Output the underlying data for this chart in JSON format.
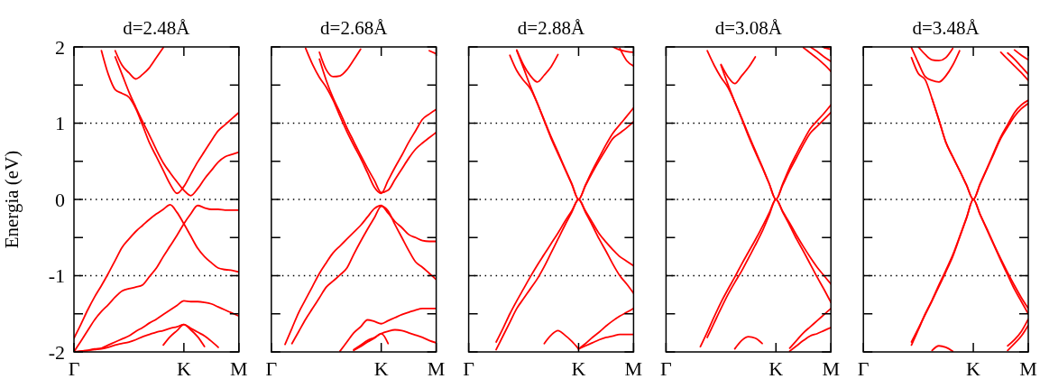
{
  "chart_data": [
    {
      "type": "line",
      "title": "d=2.48Å",
      "ylabel": "Energia (eV)",
      "categories": [
        "Γ",
        null,
        null,
        null,
        null,
        null,
        null,
        null,
        null,
        null,
        null,
        null,
        null,
        null,
        null,
        null,
        "K",
        null,
        null,
        null,
        null,
        null,
        null,
        null,
        "M"
      ],
      "ylim": [
        -2,
        2
      ],
      "yticks": [
        -2,
        {
          "value": -1.5,
          "label": null
        },
        -1,
        {
          "value": -0.5,
          "label": null
        },
        0,
        {
          "value": 0.5,
          "label": null
        },
        1,
        {
          "value": 1.5,
          "label": null
        },
        2
      ],
      "ref_lines": [
        {
          "axis": "y",
          "value": 1,
          "color": "#000000",
          "line_style": "dotted"
        },
        {
          "axis": "y",
          "value": 0,
          "color": "#000000",
          "line_style": "dotted"
        },
        {
          "axis": "y",
          "value": -1,
          "color": "#000000",
          "line_style": "dotted"
        }
      ],
      "series": [
        {
          "color": "#ff0000",
          "values": [
            null,
            null,
            null,
            null,
            null,
            null,
            1.95,
            1.76,
            1.66,
            1.58,
            1.64,
            1.73,
            1.86,
            1.99,
            null,
            null,
            null,
            null,
            null,
            null,
            null,
            null,
            null,
            null,
            null
          ]
        },
        {
          "color": "#ff0000",
          "values": [
            null,
            null,
            null,
            null,
            1.95,
            1.64,
            1.44,
            1.39,
            1.34,
            1.19,
            0.97,
            0.74,
            0.56,
            0.38,
            0.2,
            0.08,
            0.17,
            0.33,
            0.49,
            0.63,
            0.77,
            0.9,
            0.98,
            1.06,
            1.14
          ]
        },
        {
          "color": "#ff0000",
          "values": [
            null,
            null,
            null,
            null,
            null,
            null,
            1.87,
            1.64,
            1.41,
            1.21,
            1.02,
            0.84,
            0.65,
            0.48,
            0.35,
            0.23,
            0.12,
            0.05,
            0.14,
            0.27,
            0.38,
            0.49,
            0.56,
            0.59,
            0.62
          ]
        },
        {
          "color": "#ff0000",
          "values": [
            -1.82,
            -1.64,
            -1.45,
            -1.28,
            -1.13,
            -0.97,
            -0.8,
            -0.63,
            -0.52,
            -0.42,
            -0.34,
            -0.26,
            -0.19,
            -0.13,
            -0.07,
            -0.17,
            -0.32,
            -0.48,
            -0.64,
            -0.75,
            -0.83,
            -0.9,
            -0.92,
            -0.93,
            -0.95
          ]
        },
        {
          "color": "#ff0000",
          "values": [
            -2,
            -1.86,
            -1.72,
            -1.58,
            -1.47,
            -1.38,
            -1.28,
            -1.2,
            -1.17,
            -1.15,
            -1.12,
            -1.01,
            -0.9,
            -0.75,
            -0.61,
            -0.47,
            -0.32,
            -0.19,
            -0.08,
            -0.11,
            -0.13,
            -0.13,
            -0.14,
            -0.14,
            -0.14
          ]
        },
        {
          "color": "#ff0000",
          "values": [
            -2,
            -1.99,
            -1.98,
            -1.96,
            -1.95,
            -1.91,
            -1.87,
            -1.83,
            -1.79,
            -1.73,
            -1.68,
            -1.62,
            -1.57,
            -1.51,
            -1.45,
            -1.39,
            -1.33,
            -1.34,
            -1.34,
            -1.35,
            -1.37,
            -1.41,
            -1.45,
            -1.49,
            -1.53
          ]
        },
        {
          "color": "#ff0000",
          "values": [
            -2,
            -1.99,
            -1.98,
            -1.97,
            -1.96,
            -1.94,
            -1.91,
            -1.89,
            -1.87,
            -1.84,
            -1.8,
            -1.77,
            -1.74,
            -1.72,
            -1.69,
            -1.67,
            -1.64,
            -1.69,
            -1.74,
            -1.79,
            -1.86,
            -1.94,
            null,
            null,
            null
          ]
        },
        {
          "color": "#ff0000",
          "values": [
            null,
            null,
            null,
            null,
            null,
            null,
            null,
            null,
            null,
            null,
            null,
            null,
            null,
            -1.91,
            -1.8,
            -1.72,
            -1.64,
            -1.71,
            -1.8,
            -1.93,
            null,
            null,
            null,
            null,
            null
          ]
        }
      ]
    },
    {
      "type": "line",
      "title": "d=2.68Å",
      "tick_labels": "x",
      "categories": [
        "Γ",
        null,
        null,
        null,
        null,
        null,
        null,
        null,
        null,
        null,
        null,
        null,
        null,
        null,
        null,
        null,
        "K",
        null,
        null,
        null,
        null,
        null,
        null,
        null,
        "M"
      ],
      "ylim": [
        -2,
        2
      ],
      "yticks": [
        -2,
        {
          "value": -1.5,
          "label": null
        },
        -1,
        {
          "value": -0.5,
          "label": null
        },
        0,
        {
          "value": 0.5,
          "label": null
        },
        1,
        {
          "value": 1.5,
          "label": null
        },
        2
      ],
      "ref_lines": [
        {
          "axis": "y",
          "value": 1,
          "color": "#000000",
          "line_style": "dotted"
        },
        {
          "axis": "y",
          "value": 0,
          "color": "#000000",
          "line_style": "dotted"
        },
        {
          "axis": "y",
          "value": -1,
          "color": "#000000",
          "line_style": "dotted"
        }
      ],
      "series": [
        {
          "color": "#ff0000",
          "values": [
            null,
            null,
            null,
            null,
            null,
            null,
            null,
            1.93,
            1.7,
            1.61,
            1.62,
            1.7,
            1.83,
            1.97,
            null,
            null,
            null,
            null,
            null,
            null,
            null,
            null,
            null,
            null,
            null
          ]
        },
        {
          "color": "#ff0000",
          "values": [
            null,
            null,
            null,
            null,
            null,
            1.98,
            1.77,
            1.6,
            1.47,
            1.3,
            1.09,
            0.89,
            0.71,
            0.54,
            0.35,
            0.16,
            0.08,
            0.25,
            0.42,
            0.58,
            0.75,
            0.9,
            1.05,
            1.12,
            1.18
          ]
        },
        {
          "color": "#ff0000",
          "values": [
            null,
            null,
            null,
            null,
            null,
            null,
            null,
            1.84,
            1.56,
            1.33,
            1.14,
            0.94,
            0.76,
            0.58,
            0.41,
            0.25,
            0.09,
            0.12,
            0.26,
            0.4,
            0.54,
            0.66,
            0.74,
            0.81,
            0.88
          ]
        },
        {
          "color": "#ff0000",
          "values": [
            null,
            null,
            -1.9,
            -1.69,
            -1.48,
            -1.31,
            -1.14,
            -0.97,
            -0.83,
            -0.7,
            -0.61,
            -0.52,
            -0.43,
            -0.34,
            -0.23,
            -0.12,
            -0.08,
            -0.18,
            -0.29,
            -0.37,
            -0.46,
            -0.5,
            -0.54,
            -0.55,
            -0.55
          ]
        },
        {
          "color": "#ff0000",
          "values": [
            null,
            null,
            null,
            -1.89,
            -1.73,
            -1.57,
            -1.43,
            -1.29,
            -1.15,
            -1.07,
            -0.99,
            -0.9,
            -0.72,
            -0.55,
            -0.39,
            -0.24,
            -0.09,
            -0.15,
            -0.33,
            -0.5,
            -0.67,
            -0.82,
            -0.89,
            -0.97,
            -1.05
          ]
        },
        {
          "color": "#ff0000",
          "values": [
            null,
            null,
            null,
            null,
            null,
            null,
            null,
            null,
            null,
            null,
            -1.99,
            -1.87,
            -1.75,
            -1.67,
            -1.58,
            -1.6,
            -1.63,
            -1.59,
            -1.55,
            -1.51,
            -1.48,
            -1.45,
            -1.43,
            -1.43,
            -1.43
          ]
        },
        {
          "color": "#ff0000",
          "values": [
            null,
            null,
            null,
            null,
            null,
            null,
            null,
            null,
            null,
            null,
            null,
            null,
            -1.97,
            -1.91,
            -1.85,
            -1.81,
            -1.76,
            -1.73,
            -1.71,
            -1.72,
            -1.75,
            -1.78,
            -1.81,
            -1.85,
            -1.88
          ]
        },
        {
          "color": "#ff0000",
          "values": [
            null,
            null,
            null,
            null,
            null,
            null,
            null,
            null,
            null,
            null,
            null,
            null,
            -1.98,
            -1.93,
            -1.87,
            -1.82,
            -1.76,
            -1.89,
            null,
            null,
            null,
            null,
            null,
            null,
            null
          ]
        },
        {
          "color": "#ff0000",
          "values": [
            null,
            null,
            null,
            null,
            null,
            null,
            null,
            null,
            null,
            null,
            null,
            null,
            null,
            null,
            null,
            null,
            null,
            null,
            null,
            null,
            null,
            null,
            null,
            1.95,
            1.91
          ]
        }
      ]
    },
    {
      "type": "line",
      "title": "d=2.88Å",
      "tick_labels": "x",
      "categories": [
        "Γ",
        null,
        null,
        null,
        null,
        null,
        null,
        null,
        null,
        null,
        null,
        null,
        null,
        null,
        null,
        null,
        "K",
        null,
        null,
        null,
        null,
        null,
        null,
        null,
        "M"
      ],
      "ylim": [
        -2,
        2
      ],
      "yticks": [
        -2,
        {
          "value": -1.5,
          "label": null
        },
        -1,
        {
          "value": -0.5,
          "label": null
        },
        0,
        {
          "value": 0.5,
          "label": null
        },
        1,
        {
          "value": 1.5,
          "label": null
        },
        2
      ],
      "ref_lines": [
        {
          "axis": "y",
          "value": 1,
          "color": "#000000",
          "line_style": "dotted"
        },
        {
          "axis": "y",
          "value": 0,
          "color": "#000000",
          "line_style": "dotted"
        },
        {
          "axis": "y",
          "value": -1,
          "color": "#000000",
          "line_style": "dotted"
        }
      ],
      "series": [
        {
          "color": "#ff0000",
          "values": [
            null,
            null,
            null,
            null,
            null,
            null,
            null,
            1.96,
            1.76,
            1.62,
            1.54,
            1.63,
            1.74,
            1.9,
            null,
            null,
            null,
            null,
            null,
            null,
            null,
            null,
            null,
            null,
            null
          ]
        },
        {
          "color": "#ff0000",
          "values": [
            null,
            null,
            null,
            null,
            null,
            null,
            1.89,
            1.69,
            1.56,
            1.45,
            1.26,
            1.03,
            0.8,
            0.6,
            0.4,
            0.2,
            0,
            0.19,
            0.38,
            0.55,
            0.72,
            0.87,
            0.98,
            1.09,
            1.2
          ]
        },
        {
          "color": "#ff0000",
          "values": [
            null,
            null,
            null,
            null,
            null,
            null,
            null,
            1.95,
            1.72,
            1.48,
            1.26,
            1.04,
            0.82,
            0.62,
            0.41,
            0.21,
            0,
            0.18,
            0.35,
            0.51,
            0.66,
            0.8,
            0.87,
            0.94,
            1.02
          ]
        },
        {
          "color": "#ff0000",
          "values": [
            null,
            null,
            null,
            null,
            -1.87,
            -1.69,
            -1.5,
            -1.33,
            -1.17,
            -1.01,
            -0.86,
            -0.72,
            -0.58,
            -0.44,
            -0.29,
            -0.15,
            0,
            -0.15,
            -0.3,
            -0.45,
            -0.56,
            -0.66,
            -0.75,
            -0.81,
            -0.87
          ]
        },
        {
          "color": "#ff0000",
          "values": [
            null,
            null,
            null,
            null,
            -1.97,
            -1.79,
            -1.61,
            -1.43,
            -1.3,
            -1.17,
            -1.04,
            -0.88,
            -0.7,
            -0.52,
            -0.34,
            -0.17,
            0,
            -0.17,
            -0.34,
            -0.52,
            -0.68,
            -0.85,
            -1,
            -1.11,
            -1.23
          ]
        },
        {
          "color": "#ff0000",
          "values": [
            null,
            null,
            null,
            null,
            null,
            null,
            null,
            null,
            null,
            null,
            null,
            -1.89,
            -1.78,
            -1.72,
            -1.78,
            -1.86,
            -1.96,
            null,
            null,
            null,
            null,
            null,
            null,
            null,
            null
          ]
        },
        {
          "color": "#ff0000",
          "values": [
            null,
            null,
            null,
            null,
            null,
            null,
            null,
            null,
            null,
            null,
            null,
            null,
            null,
            null,
            null,
            null,
            -1.96,
            -1.89,
            -1.81,
            -1.74,
            -1.66,
            -1.59,
            -1.53,
            -1.48,
            -1.43
          ]
        },
        {
          "color": "#ff0000",
          "values": [
            null,
            null,
            null,
            null,
            null,
            null,
            null,
            null,
            null,
            null,
            null,
            null,
            null,
            null,
            null,
            null,
            -1.96,
            -1.92,
            -1.88,
            -1.84,
            -1.81,
            -1.79,
            -1.77,
            -1.77,
            -1.77
          ]
        },
        {
          "color": "#ff0000",
          "values": [
            null,
            null,
            null,
            null,
            null,
            null,
            null,
            null,
            null,
            null,
            null,
            null,
            null,
            null,
            null,
            null,
            null,
            null,
            null,
            null,
            null,
            2,
            1.96,
            1.94,
            1.93
          ]
        },
        {
          "color": "#ff0000",
          "values": [
            null,
            null,
            null,
            null,
            null,
            null,
            null,
            null,
            null,
            null,
            null,
            null,
            null,
            null,
            null,
            null,
            null,
            null,
            null,
            null,
            null,
            null,
            1.98,
            1.82,
            1.75
          ]
        }
      ]
    },
    {
      "type": "line",
      "title": "d=3.08Å",
      "tick_labels": "x",
      "categories": [
        "Γ",
        null,
        null,
        null,
        null,
        null,
        null,
        null,
        null,
        null,
        null,
        null,
        null,
        null,
        null,
        null,
        "K",
        null,
        null,
        null,
        null,
        null,
        null,
        null,
        "M"
      ],
      "ylim": [
        -2,
        2
      ],
      "yticks": [
        -2,
        {
          "value": -1.5,
          "label": null
        },
        -1,
        {
          "value": -0.5,
          "label": null
        },
        0,
        {
          "value": 0.5,
          "label": null
        },
        1,
        {
          "value": 1.5,
          "label": null
        },
        2
      ],
      "ref_lines": [
        {
          "axis": "y",
          "value": 1,
          "color": "#000000",
          "line_style": "dotted"
        },
        {
          "axis": "y",
          "value": 0,
          "color": "#000000",
          "line_style": "dotted"
        },
        {
          "axis": "y",
          "value": -1,
          "color": "#000000",
          "line_style": "dotted"
        }
      ],
      "series": [
        {
          "color": "#ff0000",
          "values": [
            null,
            null,
            null,
            null,
            null,
            null,
            null,
            null,
            1.77,
            1.61,
            1.52,
            1.62,
            1.73,
            1.87,
            null,
            null,
            null,
            null,
            null,
            null,
            null,
            null,
            null,
            null,
            null
          ]
        },
        {
          "color": "#ff0000",
          "values": [
            null,
            null,
            null,
            null,
            null,
            null,
            1.95,
            1.76,
            1.6,
            1.47,
            1.28,
            1.07,
            0.85,
            0.64,
            0.43,
            0.21,
            0,
            0.21,
            0.42,
            0.6,
            0.77,
            0.93,
            1.03,
            1.13,
            1.24
          ]
        },
        {
          "color": "#ff0000",
          "values": [
            null,
            null,
            null,
            null,
            null,
            null,
            null,
            null,
            1.76,
            1.51,
            1.28,
            1.06,
            0.83,
            0.62,
            0.42,
            0.21,
            0,
            0.19,
            0.38,
            0.55,
            0.72,
            0.87,
            0.96,
            1.05,
            1.14
          ]
        },
        {
          "color": "#ff0000",
          "values": [
            null,
            null,
            null,
            null,
            null,
            -1.93,
            -1.74,
            -1.54,
            -1.35,
            -1.18,
            -1.02,
            -0.85,
            -0.69,
            -0.53,
            -0.36,
            -0.18,
            0,
            -0.16,
            -0.31,
            -0.47,
            -0.62,
            -0.76,
            -0.89,
            -1,
            -1.11
          ]
        },
        {
          "color": "#ff0000",
          "values": [
            null,
            null,
            null,
            null,
            null,
            null,
            -1.81,
            -1.62,
            -1.43,
            -1.25,
            -1.09,
            -0.94,
            -0.77,
            -0.6,
            -0.42,
            -0.21,
            0,
            -0.17,
            -0.34,
            -0.52,
            -0.68,
            -0.85,
            -1.02,
            -1.18,
            -1.35
          ]
        },
        {
          "color": "#ff0000",
          "values": [
            null,
            null,
            null,
            null,
            null,
            null,
            null,
            null,
            null,
            null,
            -1.96,
            -1.85,
            -1.8,
            -1.82,
            -1.89,
            null,
            null,
            null,
            null,
            null,
            null,
            null,
            null,
            null,
            null
          ]
        },
        {
          "color": "#ff0000",
          "values": [
            null,
            null,
            null,
            null,
            null,
            null,
            null,
            null,
            null,
            null,
            null,
            null,
            null,
            null,
            null,
            null,
            null,
            null,
            -1.95,
            -1.85,
            -1.75,
            -1.67,
            -1.59,
            -1.51,
            -1.43
          ]
        },
        {
          "color": "#ff0000",
          "values": [
            null,
            null,
            null,
            null,
            null,
            null,
            null,
            null,
            null,
            null,
            null,
            null,
            null,
            null,
            null,
            null,
            null,
            null,
            -1.99,
            -1.92,
            -1.85,
            -1.79,
            -1.76,
            -1.72,
            -1.68
          ]
        },
        {
          "color": "#ff0000",
          "values": [
            null,
            null,
            null,
            null,
            null,
            null,
            null,
            null,
            null,
            null,
            null,
            null,
            null,
            null,
            null,
            null,
            null,
            null,
            null,
            null,
            1.99,
            1.92,
            1.85,
            1.77,
            1.68
          ]
        },
        {
          "color": "#ff0000",
          "values": [
            null,
            null,
            null,
            null,
            null,
            null,
            null,
            null,
            null,
            null,
            null,
            null,
            null,
            null,
            null,
            null,
            null,
            null,
            null,
            null,
            null,
            2,
            1.94,
            1.87,
            1.81
          ]
        },
        {
          "color": "#ff0000",
          "values": [
            null,
            null,
            null,
            null,
            null,
            null,
            null,
            null,
            null,
            null,
            null,
            null,
            null,
            null,
            null,
            null,
            null,
            null,
            null,
            null,
            null,
            null,
            null,
            1.99,
            1.97
          ]
        }
      ]
    },
    {
      "type": "line",
      "title": "d=3.48Å",
      "tick_labels": "x",
      "categories": [
        "Γ",
        null,
        null,
        null,
        null,
        null,
        null,
        null,
        null,
        null,
        null,
        null,
        null,
        null,
        null,
        null,
        "K",
        null,
        null,
        null,
        null,
        null,
        null,
        null,
        "M"
      ],
      "ylim": [
        -2,
        2
      ],
      "yticks": [
        -2,
        {
          "value": -1.5,
          "label": null
        },
        -1,
        {
          "value": -0.5,
          "label": null
        },
        0,
        {
          "value": 0.5,
          "label": null
        },
        1,
        {
          "value": 1.5,
          "label": null
        },
        2
      ],
      "ref_lines": [
        {
          "axis": "y",
          "value": 1,
          "color": "#000000",
          "line_style": "dotted"
        },
        {
          "axis": "y",
          "value": 0,
          "color": "#000000",
          "line_style": "dotted"
        },
        {
          "axis": "y",
          "value": -1,
          "color": "#000000",
          "line_style": "dotted"
        }
      ],
      "series": [
        {
          "color": "#ff0000",
          "values": [
            null,
            null,
            null,
            null,
            null,
            null,
            null,
            1.99,
            1.79,
            1.61,
            1.56,
            1.54,
            1.62,
            1.76,
            1.95,
            null,
            null,
            null,
            null,
            null,
            null,
            null,
            null,
            null,
            null
          ]
        },
        {
          "color": "#ff0000",
          "values": [
            null,
            null,
            null,
            null,
            null,
            null,
            null,
            null,
            2,
            1.9,
            1.83,
            1.82,
            1.86,
            1.98,
            null,
            null,
            null,
            null,
            null,
            null,
            null,
            null,
            null,
            null,
            null
          ]
        },
        {
          "color": "#ff0000",
          "values": [
            null,
            null,
            null,
            null,
            null,
            null,
            null,
            1.86,
            1.65,
            1.57,
            1.32,
            1.04,
            0.75,
            0.56,
            0.38,
            0.19,
            0,
            0.21,
            0.41,
            0.62,
            0.82,
            0.98,
            1.14,
            1.24,
            1.3
          ]
        },
        {
          "color": "#ff0000",
          "values": [
            null,
            null,
            null,
            null,
            null,
            null,
            null,
            null,
            null,
            null,
            1.32,
            1.04,
            0.75,
            0.56,
            0.38,
            0.19,
            0,
            0.2,
            0.4,
            0.6,
            0.8,
            0.95,
            1.09,
            1.19,
            1.26
          ]
        },
        {
          "color": "#ff0000",
          "values": [
            null,
            null,
            null,
            null,
            null,
            null,
            null,
            -1.87,
            -1.69,
            -1.51,
            -1.33,
            -1.14,
            -0.95,
            -0.75,
            -0.5,
            -0.25,
            0,
            -0.2,
            -0.39,
            -0.59,
            -0.78,
            -0.96,
            -1.13,
            -1.29,
            -1.43
          ]
        },
        {
          "color": "#ff0000",
          "values": [
            null,
            null,
            null,
            null,
            null,
            null,
            null,
            -1.91,
            -1.71,
            -1.5,
            -1.32,
            -1.12,
            -0.93,
            -0.73,
            -0.49,
            -0.24,
            0,
            -0.2,
            -0.4,
            -0.6,
            -0.8,
            -0.99,
            -1.18,
            -1.34,
            -1.5
          ]
        },
        {
          "color": "#ff0000",
          "values": [
            null,
            null,
            null,
            null,
            null,
            null,
            null,
            null,
            null,
            null,
            -1.98,
            -1.92,
            -1.94,
            -1.99,
            null,
            null,
            null,
            null,
            null,
            null,
            null,
            null,
            null,
            null,
            null
          ]
        },
        {
          "color": "#ff0000",
          "values": [
            null,
            null,
            null,
            null,
            null,
            null,
            null,
            null,
            null,
            null,
            null,
            null,
            null,
            null,
            null,
            null,
            null,
            null,
            null,
            null,
            null,
            -1.92,
            -1.84,
            -1.73,
            -1.57
          ]
        },
        {
          "color": "#ff0000",
          "values": [
            null,
            null,
            null,
            null,
            null,
            null,
            null,
            null,
            null,
            null,
            null,
            null,
            null,
            null,
            null,
            null,
            null,
            null,
            null,
            null,
            null,
            -1.98,
            -1.89,
            -1.79,
            -1.65
          ]
        },
        {
          "color": "#ff0000",
          "values": [
            null,
            null,
            null,
            null,
            null,
            null,
            null,
            null,
            null,
            null,
            null,
            null,
            null,
            null,
            null,
            null,
            null,
            null,
            null,
            null,
            1.93,
            1.84,
            1.75,
            1.66,
            1.56
          ]
        },
        {
          "color": "#ff0000",
          "values": [
            null,
            null,
            null,
            null,
            null,
            null,
            null,
            null,
            null,
            null,
            null,
            null,
            null,
            null,
            null,
            null,
            null,
            null,
            null,
            null,
            null,
            1.92,
            1.84,
            1.74,
            1.64
          ]
        },
        {
          "color": "#ff0000",
          "values": [
            null,
            null,
            null,
            null,
            null,
            null,
            null,
            null,
            null,
            null,
            null,
            null,
            null,
            null,
            null,
            null,
            null,
            null,
            null,
            null,
            null,
            null,
            1.96,
            1.89,
            1.83
          ]
        }
      ]
    }
  ]
}
